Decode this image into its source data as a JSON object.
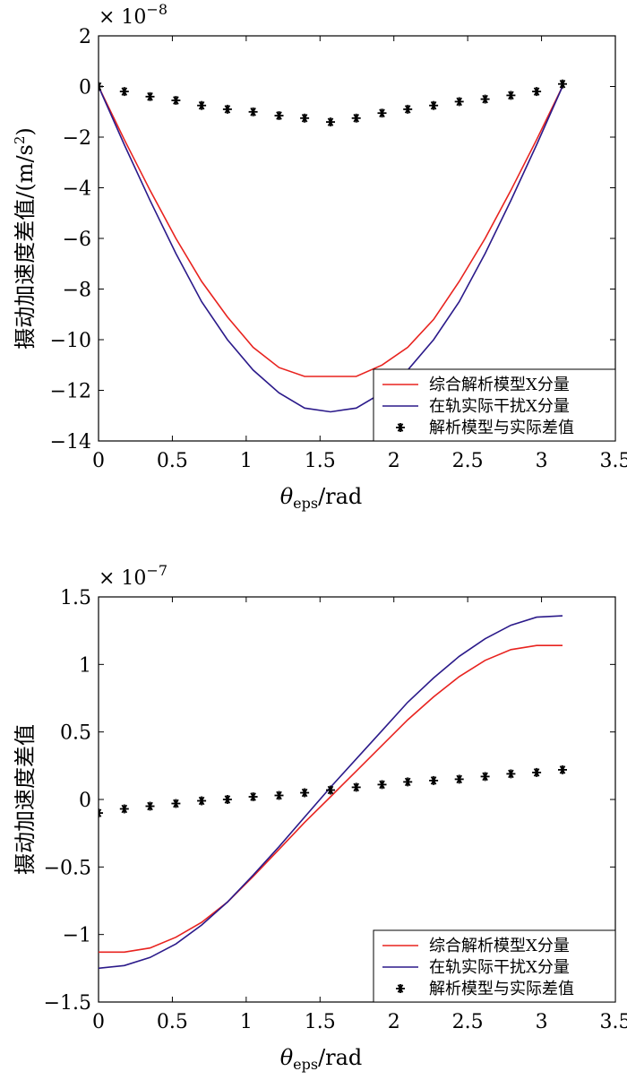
{
  "chart_data": [
    {
      "type": "line",
      "title": "",
      "xlabel": "θeps/rad",
      "xlabel_symbol": "θ",
      "xlabel_sub": "eps",
      "xlabel_unit": "/rad",
      "ylabel": "摄动加速度差值/(m/s²)",
      "ylabel_text": "摄动加速度差值/(m/s",
      "ylabel_sup": "2",
      "ylabel_close": ")",
      "exponent_label": "× 10",
      "exponent_power": "−8",
      "xlim": [
        0,
        3.5
      ],
      "ylim": [
        -14,
        2
      ],
      "xticks": [
        "0",
        "0.5",
        "1",
        "1.5",
        "2",
        "2.5",
        "3",
        "3.5"
      ],
      "yticks": [
        "2",
        "0",
        "−2",
        "−4",
        "−6",
        "−8",
        "−10",
        "−12",
        "−14"
      ],
      "ytick_values": [
        2,
        0,
        -2,
        -4,
        -6,
        -8,
        -10,
        -12,
        -14
      ],
      "legend_position": "bottom-right",
      "series": [
        {
          "name": "综合解析模型X分量",
          "color": "#e8231f",
          "style": "line",
          "x": [
            0,
            0.175,
            0.349,
            0.524,
            0.698,
            0.873,
            1.047,
            1.222,
            1.396,
            1.571,
            1.745,
            1.92,
            2.094,
            2.269,
            2.443,
            2.618,
            2.793,
            2.967,
            3.142
          ],
          "y": [
            0,
            -2.1,
            -4.1,
            -6.0,
            -7.7,
            -9.1,
            -10.3,
            -11.1,
            -11.45,
            -11.45,
            -11.45,
            -11.0,
            -10.3,
            -9.2,
            -7.7,
            -6.0,
            -4.1,
            -2.1,
            0
          ]
        },
        {
          "name": "在轨实际干扰X分量",
          "color": "#2b1a8a",
          "style": "line",
          "x": [
            0,
            0.175,
            0.349,
            0.524,
            0.698,
            0.873,
            1.047,
            1.222,
            1.396,
            1.571,
            1.745,
            1.92,
            2.094,
            2.269,
            2.443,
            2.618,
            2.793,
            2.967,
            3.142
          ],
          "y": [
            0,
            -2.3,
            -4.5,
            -6.6,
            -8.5,
            -10.0,
            -11.2,
            -12.1,
            -12.7,
            -12.85,
            -12.7,
            -12.1,
            -11.2,
            -10.0,
            -8.5,
            -6.6,
            -4.5,
            -2.3,
            0
          ]
        },
        {
          "name": "解析模型与实际差值",
          "color": "#000000",
          "style": "marker",
          "x": [
            0,
            0.175,
            0.349,
            0.524,
            0.698,
            0.873,
            1.047,
            1.222,
            1.396,
            1.571,
            1.745,
            1.92,
            2.094,
            2.269,
            2.443,
            2.618,
            2.793,
            2.967,
            3.142
          ],
          "y": [
            0,
            -0.2,
            -0.4,
            -0.55,
            -0.75,
            -0.9,
            -1.0,
            -1.15,
            -1.25,
            -1.4,
            -1.25,
            -1.05,
            -0.9,
            -0.75,
            -0.6,
            -0.5,
            -0.35,
            -0.2,
            0.1
          ]
        }
      ]
    },
    {
      "type": "line",
      "title": "",
      "xlabel": "θeps/rad",
      "xlabel_symbol": "θ",
      "xlabel_sub": "eps",
      "xlabel_unit": "/rad",
      "ylabel": "摄动加速度差值",
      "ylabel_text": "摄动加速度差值",
      "ylabel_sup": "",
      "ylabel_close": "",
      "exponent_label": "× 10",
      "exponent_power": "−7",
      "xlim": [
        0,
        3.5
      ],
      "ylim": [
        -1.5,
        1.5
      ],
      "xticks": [
        "0",
        "0.5",
        "1",
        "1.5",
        "2",
        "2.5",
        "3",
        "3.5"
      ],
      "yticks": [
        "1.5",
        "1",
        "0.5",
        "0",
        "−0.5",
        "−1",
        "−1.5"
      ],
      "ytick_values": [
        1.5,
        1,
        0.5,
        0,
        -0.5,
        -1,
        -1.5
      ],
      "legend_position": "bottom-right",
      "series": [
        {
          "name": "综合解析模型X分量",
          "color": "#e8231f",
          "style": "line",
          "x": [
            0,
            0.175,
            0.349,
            0.524,
            0.698,
            0.873,
            1.047,
            1.222,
            1.396,
            1.571,
            1.745,
            1.92,
            2.094,
            2.269,
            2.443,
            2.618,
            2.793,
            2.967,
            3.142
          ],
          "y": [
            -1.13,
            -1.13,
            -1.1,
            -1.02,
            -0.91,
            -0.76,
            -0.57,
            -0.37,
            -0.17,
            0.02,
            0.21,
            0.4,
            0.59,
            0.76,
            0.91,
            1.03,
            1.11,
            1.14,
            1.14
          ]
        },
        {
          "name": "在轨实际干扰X分量",
          "color": "#2b1a8a",
          "style": "line",
          "x": [
            0,
            0.175,
            0.349,
            0.524,
            0.698,
            0.873,
            1.047,
            1.222,
            1.396,
            1.571,
            1.745,
            1.92,
            2.094,
            2.269,
            2.443,
            2.618,
            2.793,
            2.967,
            3.142
          ],
          "y": [
            -1.25,
            -1.23,
            -1.17,
            -1.07,
            -0.93,
            -0.76,
            -0.56,
            -0.35,
            -0.13,
            0.09,
            0.3,
            0.51,
            0.72,
            0.9,
            1.06,
            1.19,
            1.29,
            1.35,
            1.36
          ]
        },
        {
          "name": "解析模型与实际差值",
          "color": "#000000",
          "style": "marker",
          "x": [
            0,
            0.175,
            0.349,
            0.524,
            0.698,
            0.873,
            1.047,
            1.222,
            1.396,
            1.571,
            1.745,
            1.92,
            2.094,
            2.269,
            2.443,
            2.618,
            2.793,
            2.967,
            3.142
          ],
          "y": [
            -0.1,
            -0.07,
            -0.05,
            -0.03,
            -0.01,
            0.0,
            0.02,
            0.03,
            0.05,
            0.07,
            0.09,
            0.11,
            0.13,
            0.14,
            0.15,
            0.17,
            0.19,
            0.2,
            0.22
          ]
        }
      ]
    }
  ]
}
